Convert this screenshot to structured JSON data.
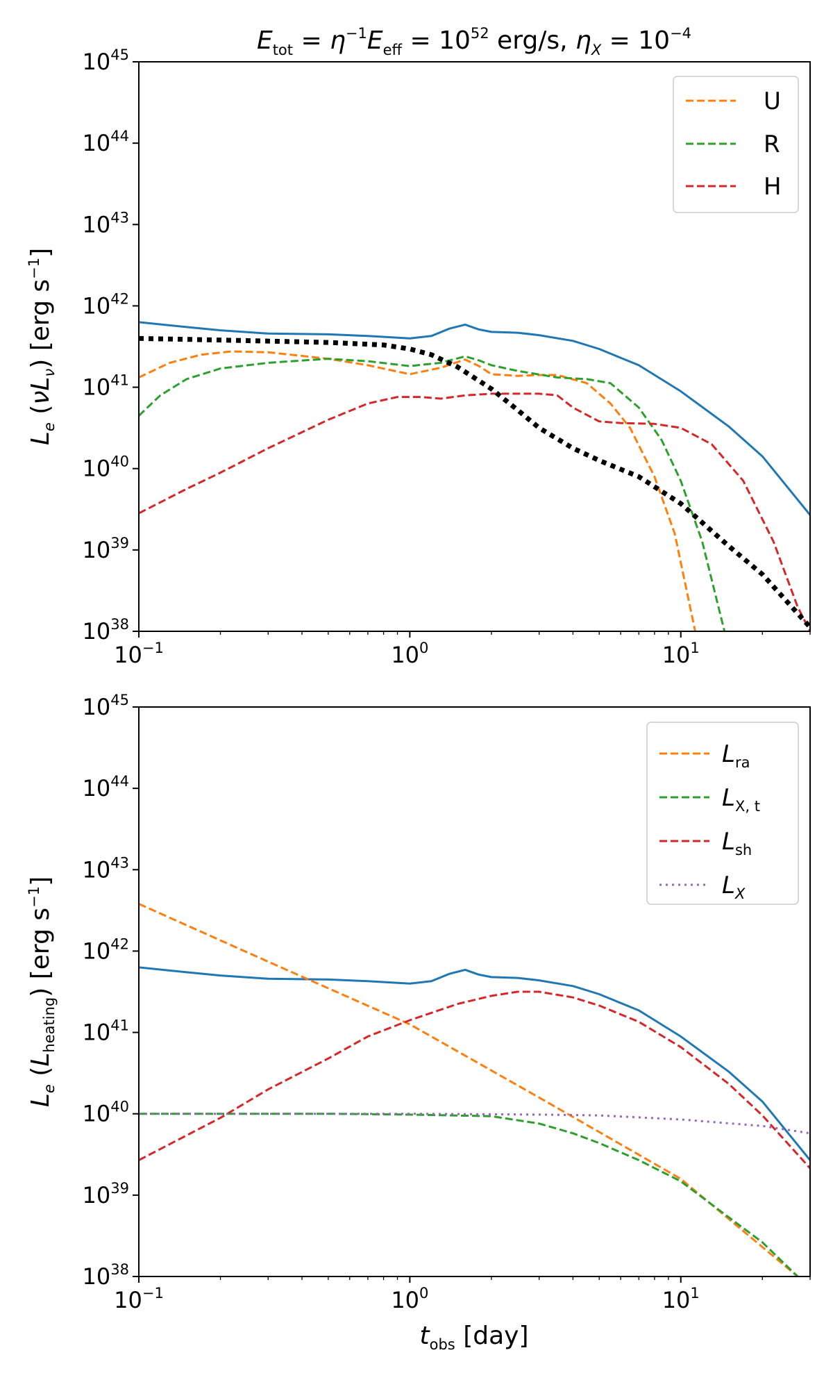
{
  "figure": {
    "title": {
      "E": "E",
      "tot": "tot",
      "eq1": " = ",
      "eta": "η",
      "minus1": "−1",
      "E2": "E",
      "eff": "eff",
      "eq2": " = 10",
      "p52": "52",
      "unit": " erg/s,  ",
      "eta2": "η",
      "X": "X",
      "eq3": " = 10",
      "m4": "−4"
    },
    "xlabel": {
      "t": "t",
      "sub": "obs",
      "unit": " [day]"
    },
    "colors": {
      "total": "#1f77b4",
      "orange": "#ff7f0e",
      "green": "#2ca02c",
      "red": "#d62728",
      "purple": "#9467bd",
      "black": "#000000"
    }
  },
  "chart_data": [
    {
      "type": "line",
      "panel": "top",
      "xscale": "log",
      "yscale": "log",
      "xlim": [
        0.1,
        30
      ],
      "ylim": [
        1e+38,
        1e+45
      ],
      "xticks": [
        {
          "base": "10",
          "exp": "−1",
          "v": 0.1
        },
        {
          "base": "10",
          "exp": "0",
          "v": 1
        },
        {
          "base": "10",
          "exp": "1",
          "v": 10
        }
      ],
      "yticks": [
        {
          "base": "10",
          "exp": "38",
          "v": 38
        },
        {
          "base": "10",
          "exp": "39",
          "v": 39
        },
        {
          "base": "10",
          "exp": "40",
          "v": 40
        },
        {
          "base": "10",
          "exp": "41",
          "v": 41
        },
        {
          "base": "10",
          "exp": "42",
          "v": 42
        },
        {
          "base": "10",
          "exp": "43",
          "v": 43
        },
        {
          "base": "10",
          "exp": "44",
          "v": 44
        },
        {
          "base": "10",
          "exp": "45",
          "v": 45
        }
      ],
      "ylabel": {
        "L": "L",
        "e": "e",
        "mid": " (",
        "nu": "νL",
        "nusub": "ν",
        "close": ") [erg s",
        "m1": "−1",
        "end": "]"
      },
      "legend": {
        "placement": "top-right",
        "entries": [
          {
            "label": "U",
            "color": "#ff7f0e",
            "style": "dashed"
          },
          {
            "label": "R",
            "color": "#2ca02c",
            "style": "dashed"
          },
          {
            "label": "H",
            "color": "#d62728",
            "style": "dashed"
          }
        ]
      },
      "series": [
        {
          "name": "total",
          "color": "#1f77b4",
          "style": "solid",
          "x": [
            0.1,
            0.15,
            0.2,
            0.3,
            0.5,
            0.7,
            1.0,
            1.2,
            1.4,
            1.6,
            1.8,
            2.0,
            2.5,
            3.0,
            4.0,
            5.0,
            7.0,
            10,
            15,
            20,
            30
          ],
          "y": [
            41.8,
            41.74,
            41.7,
            41.66,
            41.65,
            41.63,
            41.6,
            41.63,
            41.72,
            41.77,
            41.71,
            41.68,
            41.67,
            41.64,
            41.57,
            41.47,
            41.27,
            40.95,
            40.52,
            40.15,
            39.43
          ]
        },
        {
          "name": "U",
          "color": "#ff7f0e",
          "style": "dashed",
          "x": [
            0.1,
            0.13,
            0.17,
            0.22,
            0.3,
            0.5,
            0.7,
            1.0,
            1.3,
            1.6,
            1.8,
            2.0,
            2.5,
            3.0,
            3.5,
            4.5,
            5.5,
            6.5,
            8,
            9.5,
            11.3
          ],
          "y": [
            41.12,
            41.3,
            41.4,
            41.44,
            41.43,
            41.35,
            41.27,
            41.16,
            41.24,
            41.34,
            41.26,
            41.16,
            41.14,
            41.15,
            41.15,
            41.05,
            40.8,
            40.5,
            39.9,
            39.2,
            38.0
          ]
        },
        {
          "name": "R",
          "color": "#2ca02c",
          "style": "dashed",
          "x": [
            0.1,
            0.12,
            0.15,
            0.2,
            0.3,
            0.5,
            0.7,
            1.0,
            1.3,
            1.6,
            1.8,
            2.0,
            2.5,
            3.5,
            4.5,
            5.5,
            7,
            8.5,
            10,
            12,
            14.5
          ],
          "y": [
            40.65,
            40.9,
            41.1,
            41.23,
            41.3,
            41.35,
            41.32,
            41.26,
            41.3,
            41.38,
            41.33,
            41.27,
            41.2,
            41.12,
            41.1,
            41.05,
            40.75,
            40.35,
            39.85,
            39.1,
            38.0
          ]
        },
        {
          "name": "H",
          "color": "#d62728",
          "style": "dashed",
          "x": [
            0.1,
            0.15,
            0.2,
            0.3,
            0.5,
            0.7,
            0.9,
            1.1,
            1.3,
            1.6,
            2.0,
            3.0,
            3.5,
            4.0,
            5.0,
            6.0,
            8,
            10,
            13,
            17,
            22,
            27,
            30
          ],
          "y": [
            39.45,
            39.75,
            39.95,
            40.25,
            40.6,
            40.8,
            40.88,
            40.88,
            40.86,
            40.9,
            40.92,
            40.92,
            40.9,
            40.75,
            40.58,
            40.56,
            40.55,
            40.5,
            40.3,
            39.85,
            39.1,
            38.3,
            38.0
          ]
        },
        {
          "name": "Lx_obs",
          "color": "#000000",
          "style": "dotted",
          "x": [
            0.1,
            0.2,
            0.5,
            0.8,
            1.0,
            1.2,
            1.5,
            2.0,
            2.5,
            3.0,
            4.0,
            5.0,
            7.0,
            10,
            15,
            20,
            30
          ],
          "y": [
            41.6,
            41.58,
            41.55,
            41.52,
            41.47,
            41.4,
            41.25,
            40.98,
            40.72,
            40.5,
            40.25,
            40.1,
            39.9,
            39.57,
            39.05,
            38.7,
            38.05
          ]
        }
      ]
    },
    {
      "type": "line",
      "panel": "bottom",
      "xscale": "log",
      "yscale": "log",
      "xlim": [
        0.1,
        30
      ],
      "ylim": [
        1e+38,
        1e+45
      ],
      "xticks": [
        {
          "base": "10",
          "exp": "−1",
          "v": 0.1
        },
        {
          "base": "10",
          "exp": "0",
          "v": 1
        },
        {
          "base": "10",
          "exp": "1",
          "v": 10
        }
      ],
      "yticks": [
        {
          "base": "10",
          "exp": "38",
          "v": 38
        },
        {
          "base": "10",
          "exp": "39",
          "v": 39
        },
        {
          "base": "10",
          "exp": "40",
          "v": 40
        },
        {
          "base": "10",
          "exp": "41",
          "v": 41
        },
        {
          "base": "10",
          "exp": "42",
          "v": 42
        },
        {
          "base": "10",
          "exp": "43",
          "v": 43
        },
        {
          "base": "10",
          "exp": "44",
          "v": 44
        },
        {
          "base": "10",
          "exp": "45",
          "v": 45
        }
      ],
      "ylabel": {
        "L": "L",
        "e": "e",
        "mid": " (",
        "nu": "L",
        "nusub": "heating",
        "close": ") [erg s",
        "m1": "−1",
        "end": "]"
      },
      "legend": {
        "placement": "top-right",
        "entries": [
          {
            "label": "L",
            "sub": "ra",
            "color": "#ff7f0e",
            "style": "dashed"
          },
          {
            "label": "L",
            "sub": "X, t",
            "color": "#2ca02c",
            "style": "dashed"
          },
          {
            "label": "L",
            "sub": "sh",
            "color": "#d62728",
            "style": "dashed"
          },
          {
            "label": "L",
            "sub": "X",
            "color": "#9467bd",
            "style": "dotted"
          }
        ]
      },
      "series": [
        {
          "name": "total",
          "color": "#1f77b4",
          "style": "solid",
          "x": [
            0.1,
            0.15,
            0.2,
            0.3,
            0.5,
            0.7,
            1.0,
            1.2,
            1.4,
            1.6,
            1.8,
            2.0,
            2.5,
            3.0,
            4.0,
            5.0,
            7.0,
            10,
            15,
            20,
            30
          ],
          "y": [
            41.8,
            41.74,
            41.7,
            41.66,
            41.65,
            41.63,
            41.6,
            41.63,
            41.72,
            41.77,
            41.71,
            41.68,
            41.67,
            41.64,
            41.57,
            41.47,
            41.27,
            40.95,
            40.52,
            40.15,
            39.43
          ]
        },
        {
          "name": "L_ra",
          "color": "#ff7f0e",
          "style": "dashed",
          "x": [
            0.1,
            0.3,
            1.0,
            3.0,
            10,
            27
          ],
          "y": [
            42.58,
            41.87,
            41.1,
            40.2,
            39.2,
            38.0
          ]
        },
        {
          "name": "L_Xt",
          "color": "#2ca02c",
          "style": "dashed",
          "x": [
            0.1,
            0.5,
            1.0,
            2.0,
            3.0,
            4.0,
            5.0,
            7.0,
            10,
            15,
            20,
            27
          ],
          "y": [
            40.0,
            40.0,
            39.99,
            39.97,
            39.88,
            39.76,
            39.64,
            39.43,
            39.17,
            38.73,
            38.42,
            38.0
          ]
        },
        {
          "name": "L_sh",
          "color": "#d62728",
          "style": "dashed",
          "x": [
            0.1,
            0.2,
            0.3,
            0.5,
            0.7,
            1.0,
            1.5,
            2.0,
            2.5,
            3.0,
            4.0,
            5.0,
            7.0,
            10,
            15,
            20,
            30
          ],
          "y": [
            39.43,
            39.95,
            40.3,
            40.68,
            40.95,
            41.15,
            41.35,
            41.45,
            41.5,
            41.5,
            41.43,
            41.33,
            41.13,
            40.82,
            40.37,
            39.98,
            39.33
          ]
        },
        {
          "name": "L_X",
          "color": "#9467bd",
          "style": "dotted",
          "x": [
            0.1,
            1.0,
            3.0,
            5.0,
            10,
            20,
            30
          ],
          "y": [
            40.0,
            40.0,
            39.99,
            39.98,
            39.93,
            39.85,
            39.76
          ]
        }
      ]
    }
  ]
}
